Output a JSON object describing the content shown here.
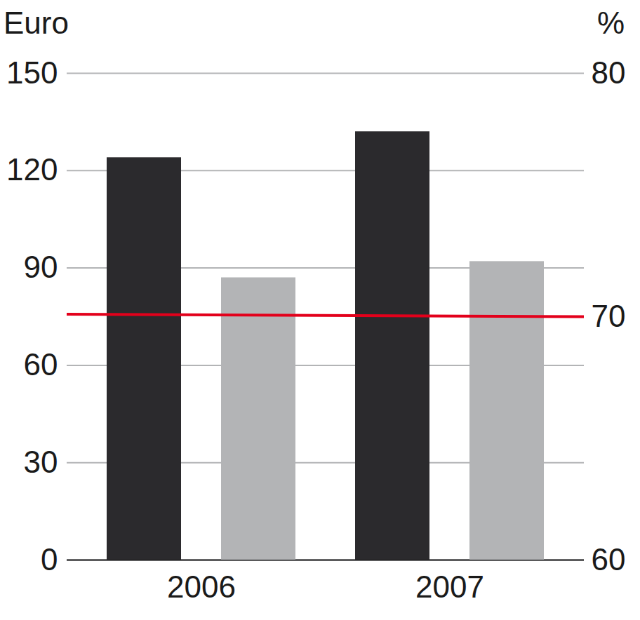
{
  "chart_data": {
    "type": "bar",
    "y_label": "Euro",
    "y2_label": "%",
    "categories": [
      "2006",
      "2007"
    ],
    "series": [
      {
        "color": "#2b2a2d",
        "values": [
          124,
          132
        ]
      },
      {
        "color": "#b3b4b6",
        "values": [
          87,
          92
        ]
      },
      {
        "type": "line",
        "axis": "y2",
        "color": "#e3001b",
        "values": [
          70.1,
          70.0
        ]
      }
    ],
    "ylim": [
      0,
      150
    ],
    "yticks": [
      0,
      30,
      60,
      90,
      120,
      150
    ],
    "y2lim": [
      60,
      80
    ],
    "y2ticks": [
      60,
      70,
      80
    ],
    "grid": true
  }
}
